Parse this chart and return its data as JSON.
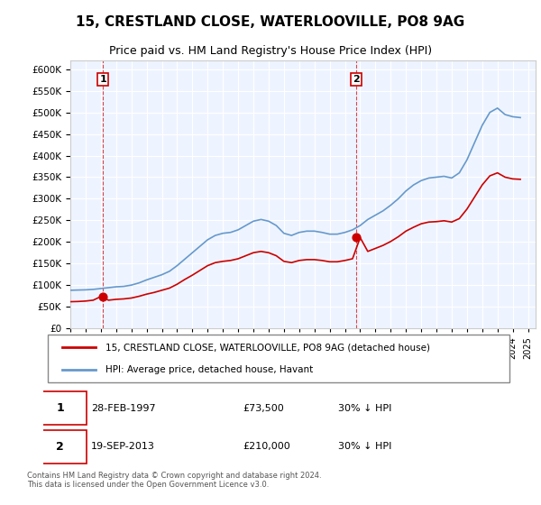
{
  "title_line1": "15, CRESTLAND CLOSE, WATERLOOVILLE, PO8 9AG",
  "title_line2": "Price paid vs. HM Land Registry's House Price Index (HPI)",
  "ylabel_ticks": [
    "£0",
    "£50K",
    "£100K",
    "£150K",
    "£200K",
    "£250K",
    "£300K",
    "£350K",
    "£400K",
    "£450K",
    "£500K",
    "£550K",
    "£600K"
  ],
  "ylim": [
    0,
    620000
  ],
  "xlim_start": 1995.0,
  "xlim_end": 2025.5,
  "legend_line1": "15, CRESTLAND CLOSE, WATERLOOVILLE, PO8 9AG (detached house)",
  "legend_line2": "HPI: Average price, detached house, Havant",
  "transaction1_label": "1",
  "transaction1_date": "28-FEB-1997",
  "transaction1_price": "£73,500",
  "transaction1_hpi": "30% ↓ HPI",
  "transaction1_year": 1997.15,
  "transaction1_value": 73500,
  "transaction2_label": "2",
  "transaction2_date": "19-SEP-2013",
  "transaction2_price": "£210,000",
  "transaction2_hpi": "30% ↓ HPI",
  "transaction2_year": 2013.72,
  "transaction2_value": 210000,
  "background_color": "#EEF4FF",
  "plot_bg": "#EEF4FF",
  "hpi_color": "#6699CC",
  "price_color": "#CC0000",
  "copyright_text": "Contains HM Land Registry data © Crown copyright and database right 2024.\nThis data is licensed under the Open Government Licence v3.0.",
  "hpi_x": [
    1995,
    1995.5,
    1996,
    1996.5,
    1997,
    1997.5,
    1998,
    1998.5,
    1999,
    1999.5,
    2000,
    2000.5,
    2001,
    2001.5,
    2002,
    2002.5,
    2003,
    2003.5,
    2004,
    2004.5,
    2005,
    2005.5,
    2006,
    2006.5,
    2007,
    2007.5,
    2008,
    2008.5,
    2009,
    2009.5,
    2010,
    2010.5,
    2011,
    2011.5,
    2012,
    2012.5,
    2013,
    2013.5,
    2014,
    2014.5,
    2015,
    2015.5,
    2016,
    2016.5,
    2017,
    2017.5,
    2018,
    2018.5,
    2019,
    2019.5,
    2020,
    2020.5,
    2021,
    2021.5,
    2022,
    2022.5,
    2023,
    2023.5,
    2024,
    2024.5
  ],
  "hpi_y": [
    88000,
    88500,
    89000,
    90000,
    92000,
    94000,
    96000,
    97000,
    100000,
    105000,
    112000,
    118000,
    124000,
    132000,
    145000,
    160000,
    175000,
    190000,
    205000,
    215000,
    220000,
    222000,
    228000,
    238000,
    248000,
    252000,
    248000,
    238000,
    220000,
    215000,
    222000,
    225000,
    225000,
    222000,
    218000,
    218000,
    222000,
    228000,
    238000,
    252000,
    262000,
    272000,
    285000,
    300000,
    318000,
    332000,
    342000,
    348000,
    350000,
    352000,
    348000,
    360000,
    390000,
    430000,
    470000,
    500000,
    510000,
    495000,
    490000,
    488000
  ],
  "price_x": [
    1995,
    1995.5,
    1996,
    1996.5,
    1997,
    1997.5,
    1998,
    1998.5,
    1999,
    1999.5,
    2000,
    2000.5,
    2001,
    2001.5,
    2002,
    2002.5,
    2003,
    2003.5,
    2004,
    2004.5,
    2005,
    2005.5,
    2006,
    2006.5,
    2007,
    2007.5,
    2008,
    2008.5,
    2009,
    2009.5,
    2010,
    2010.5,
    2011,
    2011.5,
    2012,
    2012.5,
    2013,
    2013.5,
    2014,
    2014.5,
    2015,
    2015.5,
    2016,
    2016.5,
    2017,
    2017.5,
    2018,
    2018.5,
    2019,
    2019.5,
    2020,
    2020.5,
    2021,
    2021.5,
    2022,
    2022.5,
    2023,
    2023.5,
    2024,
    2024.5
  ],
  "price_y": [
    61500,
    62000,
    63000,
    65000,
    73500,
    65000,
    67000,
    68000,
    70000,
    74000,
    79000,
    83000,
    88000,
    93000,
    102000,
    113000,
    123000,
    134000,
    145000,
    152000,
    155000,
    157000,
    161000,
    168000,
    175000,
    178000,
    175000,
    168000,
    155000,
    152000,
    157000,
    159000,
    159000,
    157000,
    154000,
    154000,
    157000,
    161000,
    210000,
    178000,
    185000,
    192000,
    201000,
    212000,
    225000,
    234000,
    242000,
    246000,
    247000,
    249000,
    246000,
    254000,
    276000,
    304000,
    332000,
    353000,
    360000,
    350000,
    346000,
    345000
  ]
}
